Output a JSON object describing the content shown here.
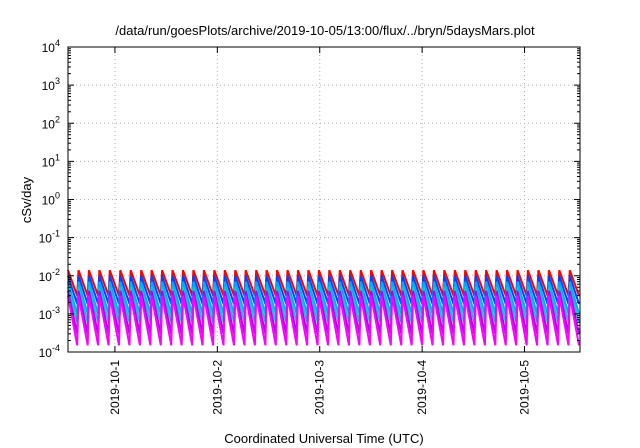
{
  "chart_data": {
    "type": "line",
    "title": "/data/run/goesPlots/archive/2019-10-05/13:00/flux/../bryn/5daysMars.plot",
    "xlabel": "Coordinated Universal Time (UTC)",
    "ylabel": "cSv/day",
    "yscale": "log",
    "ylim": [
      0.0001,
      10000
    ],
    "xlim": [
      "2019-09-30T13:00",
      "2019-10-05T13:00"
    ],
    "grid": true,
    "legend": "none",
    "y_ticks": [
      {
        "base": "10",
        "exp": "4"
      },
      {
        "base": "10",
        "exp": "3"
      },
      {
        "base": "10",
        "exp": "2"
      },
      {
        "base": "10",
        "exp": "1"
      },
      {
        "base": "10",
        "exp": "0"
      },
      {
        "base": "10",
        "exp": "-1"
      },
      {
        "base": "10",
        "exp": "-2"
      },
      {
        "base": "10",
        "exp": "-3"
      },
      {
        "base": "10",
        "exp": "-4"
      }
    ],
    "x_ticks": [
      "2019-10-1",
      "2019-10-2",
      "2019-10-3",
      "2019-10-4",
      "2019-10-5"
    ],
    "series_pattern": {
      "form": "sawtooth",
      "cycles": 49,
      "period_hours": 2.45
    },
    "series": [
      {
        "color": "#ff0000",
        "peak": 0.014,
        "trough": 0.003
      },
      {
        "color": "#0044ff",
        "peak": 0.01,
        "trough": 0.0018
      },
      {
        "color": "#00aaff",
        "peak": 0.007,
        "trough": 0.001
      },
      {
        "color": "#00cccc",
        "peak": 0.005,
        "trough": 0.0006
      },
      {
        "color": "#aa00ff",
        "peak": 0.004,
        "trough": 0.0003
      },
      {
        "color": "#ff00ff",
        "peak": 0.003,
        "trough": 0.00015
      }
    ]
  }
}
